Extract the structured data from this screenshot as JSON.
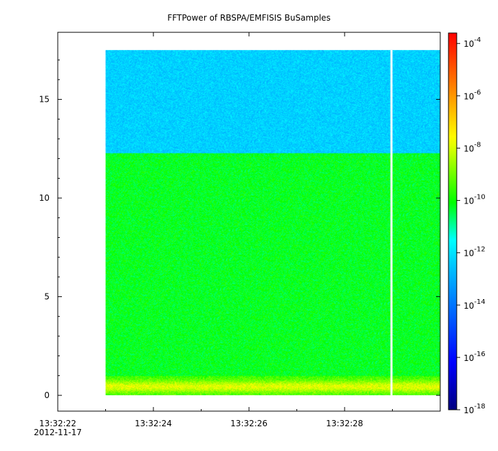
{
  "chart_data": {
    "type": "heatmap",
    "title": "FFTPower of RBSPA/EMFISIS  BuSamples",
    "xlabel": "",
    "ylabel": "",
    "x_ticks": [
      {
        "value": "13:32:22",
        "secondary": "2012-11-17"
      },
      {
        "value": "13:32:24",
        "secondary": ""
      },
      {
        "value": "13:32:26",
        "secondary": ""
      },
      {
        "value": "13:32:28",
        "secondary": ""
      }
    ],
    "x_range_seconds": [
      0,
      8
    ],
    "y_ticks": [
      0,
      5,
      10,
      15
    ],
    "ylim": [
      -0.8,
      18.4
    ],
    "data_extent": {
      "x_start_s": 1.0,
      "x_end_s": 8.0,
      "y_start": 0.0,
      "y_end": 17.5
    },
    "gap": {
      "x_s": 6.98
    },
    "regions": [
      {
        "y_from": 0.0,
        "y_to": 1.0,
        "log10_power": -8.6,
        "description": "yellow/orange low-frequency band"
      },
      {
        "y_from": 1.0,
        "y_to": 12.3,
        "log10_power": -10.2,
        "description": "green"
      },
      {
        "y_from": 12.3,
        "y_to": 17.5,
        "log10_power": -12.3,
        "description": "cyan-green"
      }
    ],
    "colorbar": {
      "scale": "log",
      "range_exp": [
        -18,
        -3.6
      ],
      "tick_exponents": [
        -4,
        -6,
        -8,
        -10,
        -12,
        -14,
        -16,
        -18
      ],
      "base": "10",
      "colormap": [
        "#00007f",
        "#0000ff",
        "#00bfff",
        "#00ffff",
        "#00ff00",
        "#ffff00",
        "#ff7f00",
        "#ff0000"
      ]
    },
    "grid": false
  }
}
